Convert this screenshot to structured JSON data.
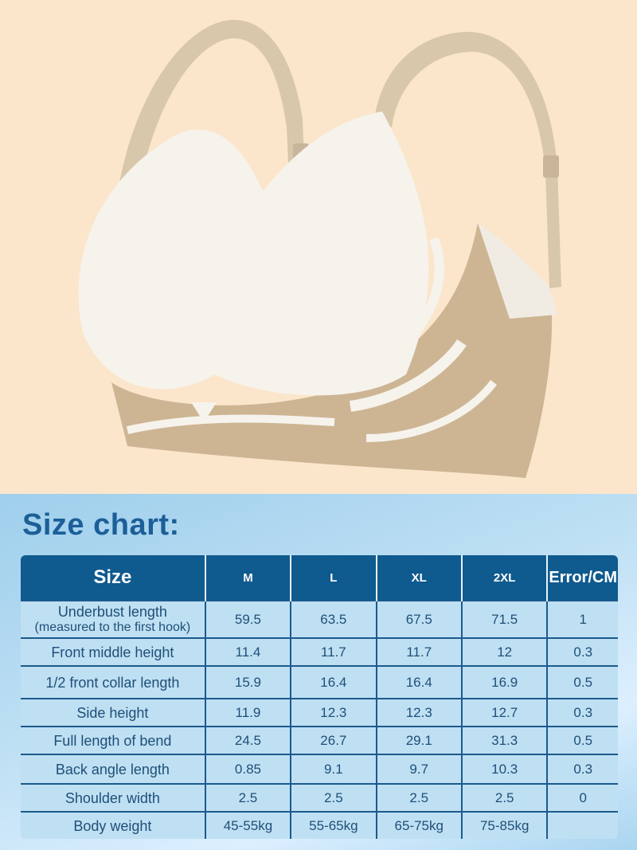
{
  "title": "Size chart:",
  "colors": {
    "header_bg": "#0f5a8e",
    "cell_bg": "#bfe0f3",
    "title": "#1c5f98",
    "photo_bg": "#fbe6cc"
  },
  "table": {
    "headers": [
      "Size",
      "M",
      "L",
      "XL",
      "2XL",
      "Error/CM"
    ],
    "rows": [
      {
        "label": "Underbust length",
        "sublabel": "(measured to the first hook)",
        "values": [
          "59.5",
          "63.5",
          "67.5",
          "71.5",
          "1"
        ]
      },
      {
        "label": "Front middle height",
        "values": [
          "11.4",
          "11.7",
          "11.7",
          "12",
          "0.3"
        ]
      },
      {
        "label": "1/2 front collar length",
        "values": [
          "15.9",
          "16.4",
          "16.4",
          "16.9",
          "0.5"
        ]
      },
      {
        "label": "Side height",
        "values": [
          "11.9",
          "12.3",
          "12.3",
          "12.7",
          "0.3"
        ]
      },
      {
        "label": "Full length of bend",
        "values": [
          "24.5",
          "26.7",
          "29.1",
          "31.3",
          "0.5"
        ]
      },
      {
        "label": "Back angle length",
        "values": [
          "0.85",
          "9.1",
          "9.7",
          "10.3",
          "0.3"
        ]
      },
      {
        "label": "Shoulder width",
        "values": [
          "2.5",
          "2.5",
          "2.5",
          "2.5",
          "0"
        ]
      },
      {
        "label": "Body weight",
        "values": [
          "45-55kg",
          "55-65kg",
          "65-75kg",
          "75-85kg",
          ""
        ]
      }
    ]
  }
}
